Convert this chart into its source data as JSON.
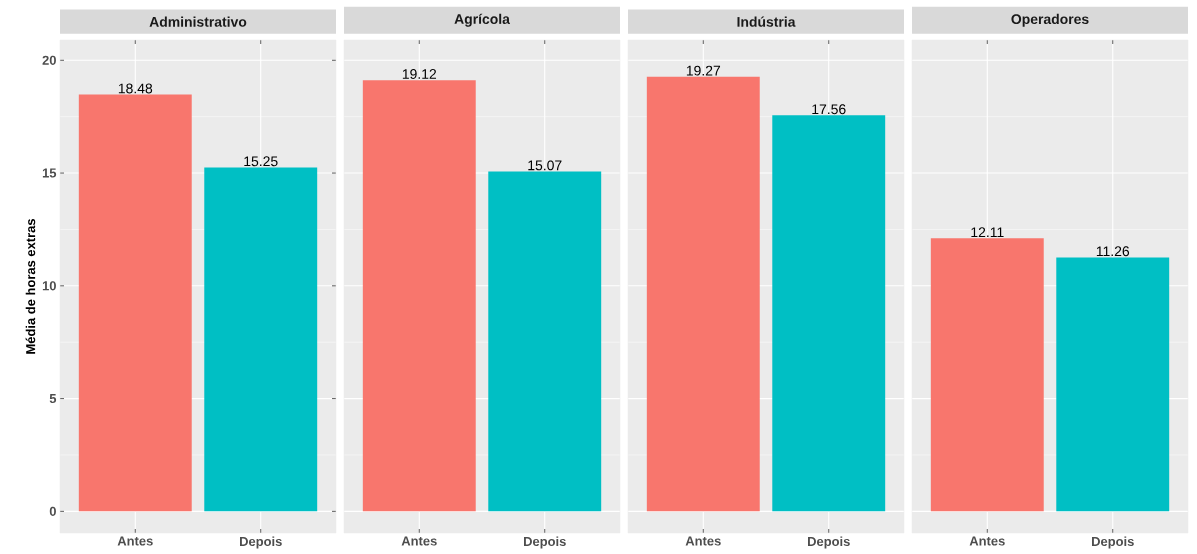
{
  "chart_data": [
    {
      "type": "bar",
      "title": "Administrativo",
      "ylabel": "Média de horas extras",
      "categories": [
        "Antes",
        "Depois"
      ],
      "values": [
        18.48,
        15.25
      ],
      "colors": [
        "#f8766d",
        "#00bfc4"
      ],
      "data_labels": true,
      "ylim": [
        -0.96,
        20.9
      ],
      "yticks": [
        0,
        5,
        10,
        15,
        20
      ],
      "grid": true
    },
    {
      "type": "bar",
      "title": "Agrícola",
      "categories": [
        "Antes",
        "Depois"
      ],
      "values": [
        19.12,
        15.07
      ],
      "colors": [
        "#f8766d",
        "#00bfc4"
      ],
      "data_labels": true,
      "ylim": [
        -0.96,
        20.9
      ],
      "yticks": [
        0,
        5,
        10,
        15,
        20
      ],
      "grid": true,
      "tick_labels": "x"
    },
    {
      "type": "bar",
      "title": "Indústria",
      "categories": [
        "Antes",
        "Depois"
      ],
      "values": [
        19.27,
        17.56
      ],
      "colors": [
        "#f8766d",
        "#00bfc4"
      ],
      "data_labels": true,
      "ylim": [
        -0.96,
        20.9
      ],
      "yticks": [
        0,
        5,
        10,
        15,
        20
      ],
      "grid": true,
      "tick_labels": "x"
    },
    {
      "type": "bar",
      "title": "Operadores",
      "categories": [
        "Antes",
        "Depois"
      ],
      "values": [
        12.11,
        11.26
      ],
      "colors": [
        "#f8766d",
        "#00bfc4"
      ],
      "data_labels": true,
      "ylim": [
        -0.96,
        20.9
      ],
      "yticks": [
        0,
        5,
        10,
        15,
        20
      ],
      "grid": true,
      "tick_labels": "x"
    }
  ]
}
